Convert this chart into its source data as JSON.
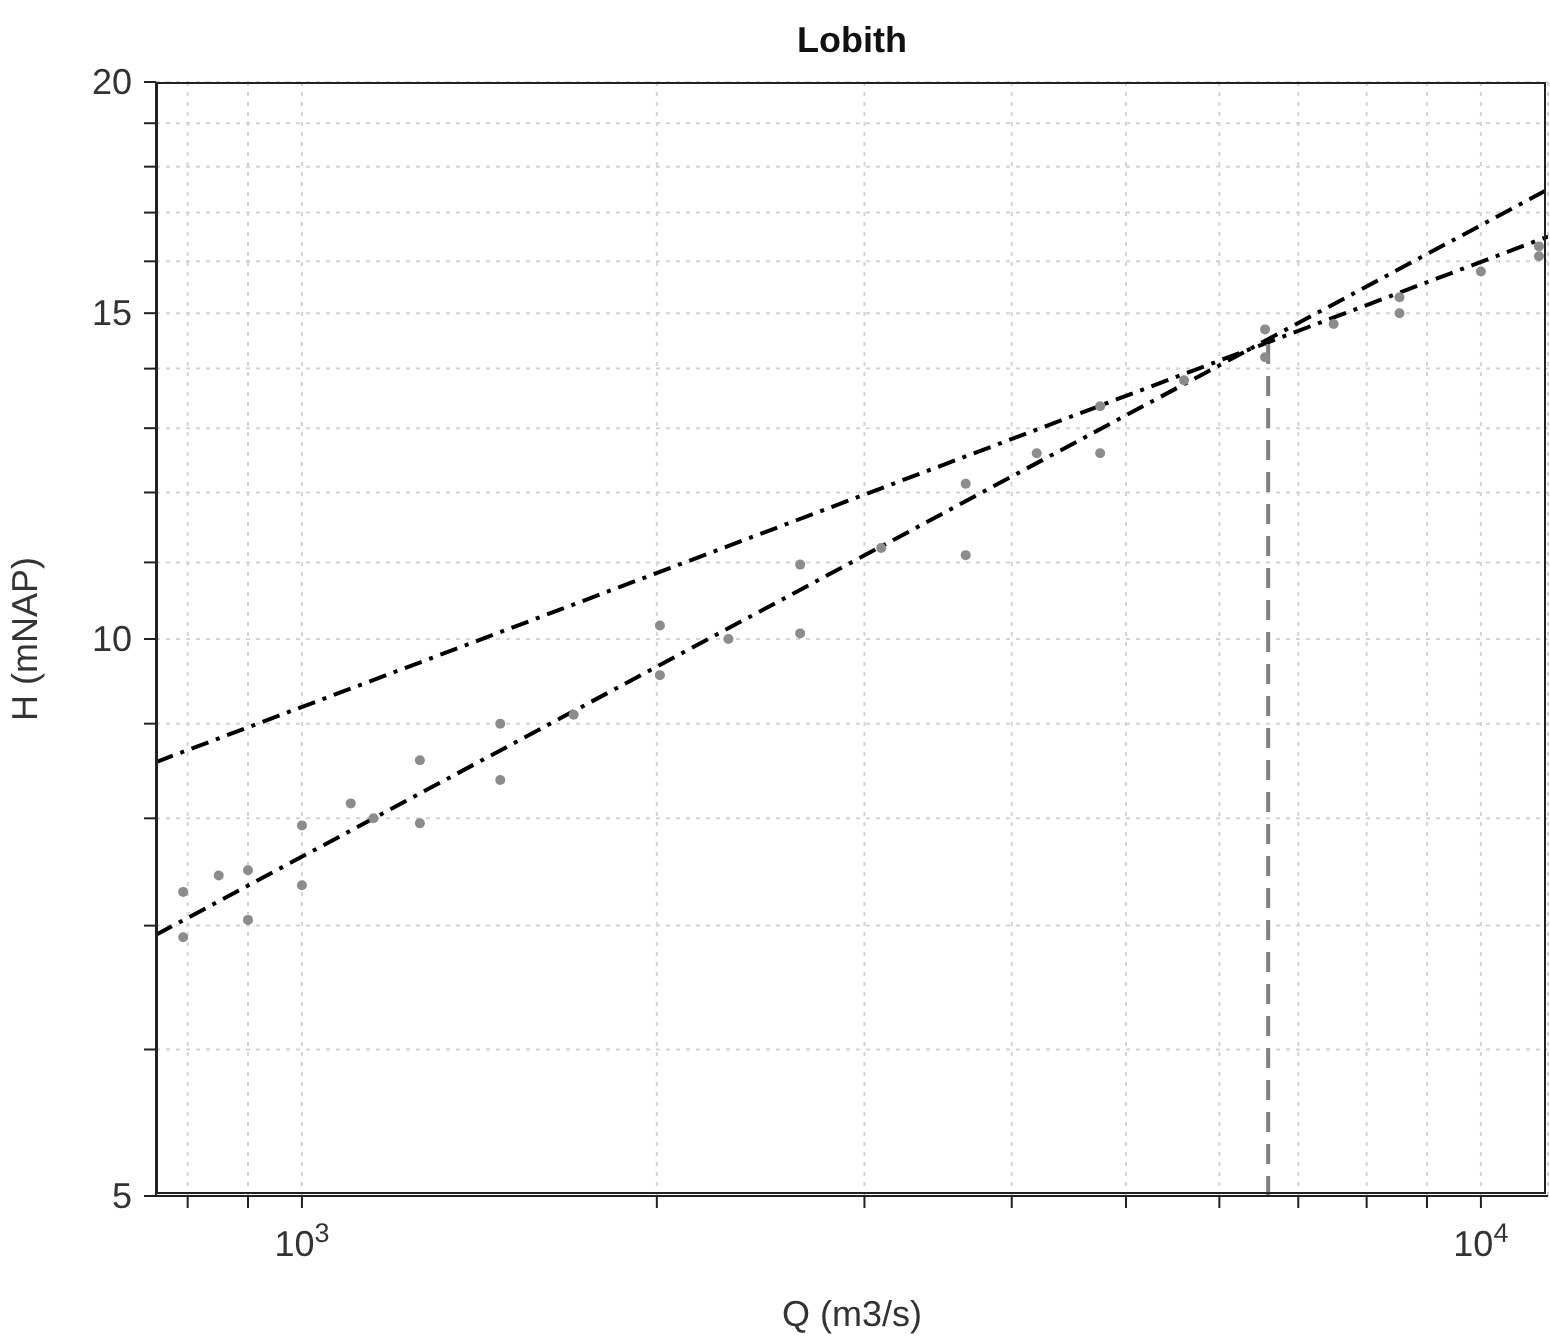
{
  "chart_data": {
    "type": "scatter",
    "title": "Lobith",
    "xlabel": "Q (m3/s)",
    "ylabel": "H (mNAP)",
    "log": "xy",
    "grid": true,
    "marker": "circle",
    "xlim": [
      752,
      11400
    ],
    "ylim": [
      5,
      20
    ],
    "xticks": [
      {
        "value": 800,
        "label": null
      },
      {
        "value": 900,
        "label": null
      },
      {
        "value": 1000,
        "label": "10$^{3}$"
      },
      {
        "value": 2000,
        "label": null
      },
      {
        "value": 3000,
        "label": null
      },
      {
        "value": 4000,
        "label": null
      },
      {
        "value": 5000,
        "label": null
      },
      {
        "value": 6000,
        "label": null
      },
      {
        "value": 7000,
        "label": null
      },
      {
        "value": 8000,
        "label": null
      },
      {
        "value": 9000,
        "label": null
      },
      {
        "value": 10000,
        "label": "10$^{4}$"
      }
    ],
    "yticks": [
      5,
      {
        "value": 6,
        "label": null
      },
      {
        "value": 7,
        "label": null
      },
      {
        "value": 8,
        "label": null
      },
      {
        "value": 9,
        "label": null
      },
      10,
      {
        "value": 11,
        "label": null
      },
      {
        "value": 12,
        "label": null
      },
      {
        "value": 13,
        "label": null
      },
      {
        "value": 14,
        "label": null
      },
      15,
      {
        "value": 16,
        "label": null
      },
      {
        "value": 17,
        "label": null
      },
      {
        "value": 18,
        "label": null
      },
      {
        "value": 19,
        "label": null
      },
      20
    ],
    "series": [
      {
        "color": "#8c8c8c",
        "x": [
          793,
          850,
          1000,
          1100,
          1259,
          1473,
          2012,
          2646,
          3656,
          4754,
          6560,
          8530,
          11200,
          793,
          900,
          1000,
          1259,
          1473,
          2012,
          2646,
          3656,
          4754,
          6560,
          8530,
          11200,
          900,
          1150,
          1700,
          2300,
          3100,
          4200,
          5600,
          7500,
          10000
        ],
        "values": [
          7.3,
          7.45,
          7.93,
          8.15,
          8.6,
          9.0,
          10.17,
          10.97,
          12.13,
          13.36,
          14.7,
          15.3,
          16.3,
          6.9,
          7.05,
          7.36,
          7.95,
          8.39,
          9.56,
          10.07,
          11.1,
          12.6,
          14.2,
          15.0,
          16.1,
          7.5,
          8.0,
          9.1,
          10.0,
          11.2,
          12.6,
          13.8,
          14.8,
          15.8
        ]
      },
      {
        "type": "line",
        "color": "#000000",
        "line_style": "dashdot",
        "marker": "none",
        "x": [
          752,
          11400
        ],
        "values": [
          6.92,
          17.5
        ]
      },
      {
        "type": "line",
        "color": "#000000",
        "line_style": "dashdot",
        "marker": "none",
        "x": [
          752,
          11400
        ],
        "values": [
          8.58,
          16.5
        ]
      },
      {
        "type": "line",
        "color": "#808080",
        "line_style": "dashed",
        "marker": "none",
        "x": [
          6600,
          6600
        ],
        "values": [
          5,
          14.5
        ]
      }
    ]
  }
}
